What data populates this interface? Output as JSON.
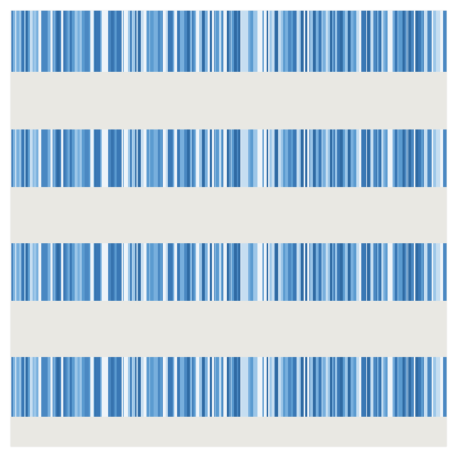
{
  "pattern": {
    "stripe_colors": [
      "#2f6aa3",
      "#3a78b5",
      "#4a88c2",
      "#5b9bd0",
      "#78afdd",
      "#9cc6e8",
      "#c6def1",
      "#eef4f9"
    ],
    "background_color": "#e9e8e3",
    "band_count": 4
  }
}
